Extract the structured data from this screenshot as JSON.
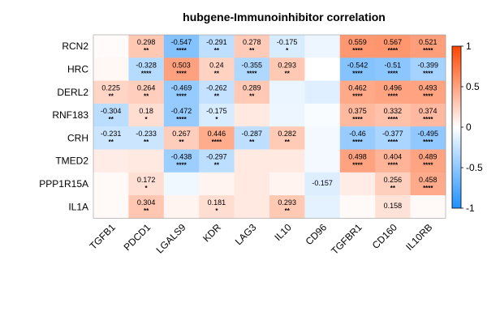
{
  "chart_data": {
    "type": "heatmap",
    "title": "hubgene-Immunoinhibitor correlation",
    "rows": [
      "RCN2",
      "HRC",
      "DERL2",
      "RNF183",
      "CRH",
      "TMED2",
      "PPP1R15A",
      "IL1A"
    ],
    "columns": [
      "TGFB1",
      "PDCD1",
      "LGALS9",
      "KDR",
      "LAG3",
      "IL10",
      "CD96",
      "TGFBR1",
      "CD160",
      "IL10RB"
    ],
    "values": [
      [
        0.02,
        0.298,
        -0.547,
        -0.291,
        0.278,
        -0.175,
        -0.08,
        0.559,
        0.567,
        0.521
      ],
      [
        0.04,
        -0.328,
        0.503,
        0.24,
        -0.355,
        0.293,
        0.0,
        -0.542,
        -0.51,
        -0.399
      ],
      [
        0.225,
        0.264,
        -0.469,
        -0.262,
        0.289,
        -0.09,
        -0.14,
        0.462,
        0.496,
        0.493
      ],
      [
        -0.304,
        0.18,
        -0.472,
        -0.175,
        0.12,
        -0.08,
        -0.03,
        0.375,
        0.332,
        0.374
      ],
      [
        -0.231,
        -0.233,
        0.267,
        0.446,
        -0.287,
        0.282,
        -0.05,
        -0.46,
        -0.377,
        -0.495
      ],
      [
        0.1,
        0.12,
        -0.438,
        -0.297,
        0.12,
        0.12,
        -0.05,
        0.498,
        0.404,
        0.489
      ],
      [
        0.03,
        0.172,
        -0.07,
        0.06,
        0.12,
        0.06,
        -0.157,
        0.1,
        0.256,
        0.458
      ],
      [
        0.03,
        0.304,
        0.06,
        0.181,
        0.12,
        0.293,
        -0.12,
        0.03,
        0.158,
        0.03
      ]
    ],
    "labels": [
      [
        "",
        "0.298",
        "-0.547",
        "-0.291",
        "0.278",
        "-0.175",
        "",
        "0.559",
        "0.567",
        "0.521"
      ],
      [
        "",
        "-0.328",
        "0.503",
        "0.24",
        "-0.355",
        "0.293",
        "",
        "-0.542",
        "-0.51",
        "-0.399"
      ],
      [
        "0.225",
        "0.264",
        "-0.469",
        "-0.262",
        "0.289",
        "",
        "",
        "0.462",
        "0.496",
        "0.493"
      ],
      [
        "-0.304",
        "0.18",
        "-0.472",
        "-0.175",
        "",
        "",
        "",
        "0.375",
        "0.332",
        "0.374"
      ],
      [
        "-0.231",
        "-0.233",
        "0.267",
        "0.446",
        "-0.287",
        "0.282",
        "",
        "-0.46",
        "-0.377",
        "-0.495"
      ],
      [
        "",
        "",
        "-0.438",
        "-0.297",
        "",
        "",
        "",
        "0.498",
        "0.404",
        "0.489"
      ],
      [
        "",
        "0.172",
        "",
        "",
        "",
        "",
        "-0.157",
        "",
        "0.256",
        "0.458"
      ],
      [
        "",
        "0.304",
        "",
        "0.181",
        "",
        "0.293",
        "",
        "",
        "0.158",
        ""
      ]
    ],
    "significance": [
      [
        "",
        "**",
        "****",
        "**",
        "**",
        "*",
        "",
        "****",
        "****",
        "****"
      ],
      [
        "",
        "****",
        "****",
        "**",
        "****",
        "**",
        "",
        "****",
        "****",
        "****"
      ],
      [
        "**",
        "**",
        "****",
        "**",
        "**",
        "",
        "",
        "****",
        "****",
        "****"
      ],
      [
        "**",
        "*",
        "****",
        "*",
        "",
        "",
        "",
        "****",
        "****",
        "****"
      ],
      [
        "**",
        "**",
        "**",
        "****",
        "**",
        "**",
        "",
        "****",
        "****",
        "****"
      ],
      [
        "",
        "",
        "****",
        "**",
        "",
        "",
        "",
        "****",
        "****",
        "****"
      ],
      [
        "",
        "*",
        "",
        "",
        "",
        "",
        "",
        "",
        "**",
        "****"
      ],
      [
        "",
        "**",
        "",
        "*",
        "",
        "**",
        "",
        "",
        "",
        ""
      ]
    ],
    "color_scale": {
      "min": -1,
      "max": 1,
      "ticks": [
        1,
        0.5,
        0,
        -0.5,
        -1
      ],
      "tick_labels": [
        "1",
        "0.5",
        "0",
        "-0.5",
        "-1"
      ],
      "negative_color": "#1E90FF",
      "zero_color": "#FFFFFF",
      "positive_color": "#FF4500"
    },
    "legend_position": "right",
    "grid": false
  }
}
